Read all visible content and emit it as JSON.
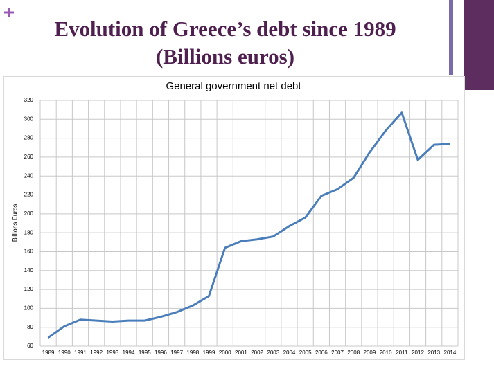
{
  "slide": {
    "title": [
      "Evolution of Greece’s debt since 1989",
      "(Billions euros)"
    ]
  },
  "chart_data": {
    "type": "line",
    "title": "General government net debt",
    "y_label": "Billions Euros",
    "categories": [
      "1989",
      "1990",
      "1991",
      "1992",
      "1993",
      "1994",
      "1995",
      "1996",
      "1997",
      "1998",
      "1999",
      "2000",
      "2001",
      "2002",
      "2003",
      "2004",
      "2005",
      "2006",
      "2007",
      "2008",
      "2009",
      "2010",
      "2011",
      "2012",
      "2013",
      "2014"
    ],
    "series": [
      {
        "name": "General government net debt",
        "color": "#4a7ebb",
        "values": [
          69,
          81,
          88,
          87,
          86,
          87,
          87,
          91,
          96,
          103,
          113,
          164,
          171,
          173,
          176,
          187,
          196,
          219,
          226,
          238,
          265,
          288,
          307,
          257,
          273,
          274
        ]
      }
    ],
    "ylim": [
      60,
      320
    ],
    "yticks": [
      60,
      80,
      100,
      120,
      140,
      160,
      180,
      200,
      220,
      240,
      260,
      280,
      300,
      320
    ],
    "grid": true
  }
}
